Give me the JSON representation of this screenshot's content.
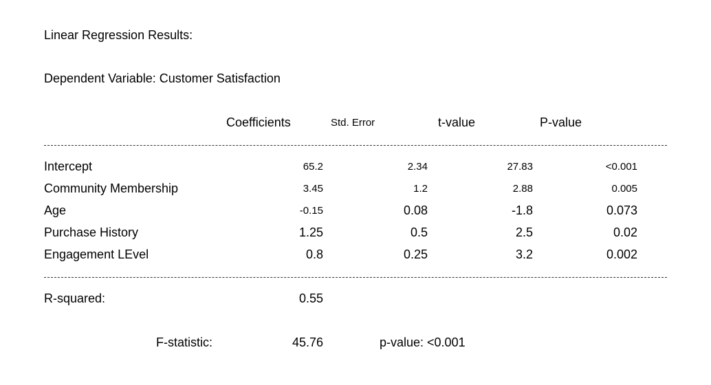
{
  "title": "Linear Regression Results:",
  "dependent_variable": "Dependent Variable: Customer Satisfaction",
  "headers": {
    "coefficients": "Coefficients",
    "std_error": "Std. Error",
    "t_value": "t-value",
    "p_value": "P-value"
  },
  "rows": [
    {
      "label": "Intercept",
      "coef": "65.2",
      "se": "2.34",
      "t": "27.83",
      "p": "<0.001"
    },
    {
      "label": "Community Membership",
      "coef": "3.45",
      "se": "1.2",
      "t": "2.88",
      "p": "0.005"
    },
    {
      "label": "Age",
      "coef": "-0.15",
      "se": "0.08",
      "t": "-1.8",
      "p": "0.073"
    },
    {
      "label": "Purchase History",
      "coef": "1.25",
      "se": "0.5",
      "t": "2.5",
      "p": "0.02"
    },
    {
      "label": "Engagement LEvel",
      "coef": "0.8",
      "se": "0.25",
      "t": "3.2",
      "p": "0.002"
    }
  ],
  "summary": {
    "r_squared_label": "R-squared:",
    "r_squared_value": "0.55",
    "f_statistic_label": "F-statistic:",
    "f_statistic_value": "45.76",
    "p_value_text": "p-value:  <0.001"
  }
}
